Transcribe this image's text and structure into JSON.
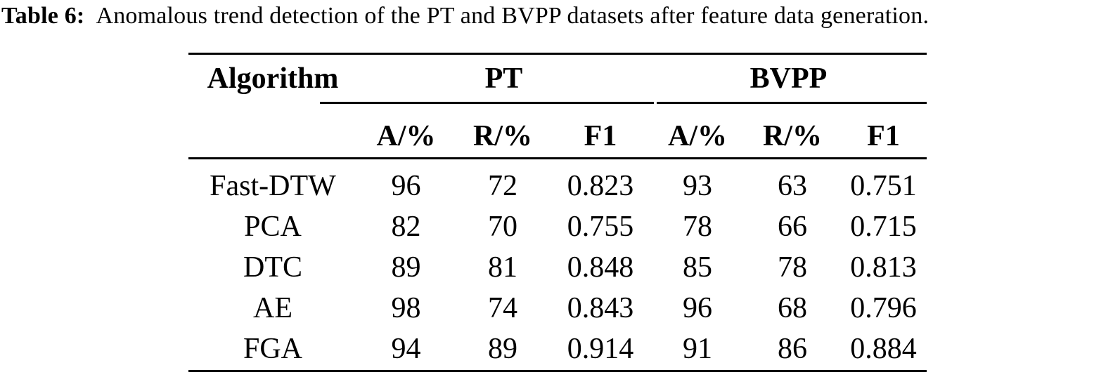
{
  "title": {
    "label": "Table 6:",
    "caption": "Anomalous trend detection of the PT and BVPP datasets after feature data generation."
  },
  "table": {
    "corner_header": "Algorithm",
    "groups": [
      {
        "label": "PT",
        "subheaders": [
          "A/%",
          "R/%",
          "F1"
        ]
      },
      {
        "label": "BVPP",
        "subheaders": [
          "A/%",
          "R/%",
          "F1"
        ]
      }
    ],
    "rows": [
      {
        "algorithm": "Fast-DTW",
        "values": [
          "96",
          "72",
          "0.823",
          "93",
          "63",
          "0.751"
        ]
      },
      {
        "algorithm": "PCA",
        "values": [
          "82",
          "70",
          "0.755",
          "78",
          "66",
          "0.715"
        ]
      },
      {
        "algorithm": "DTC",
        "values": [
          "89",
          "81",
          "0.848",
          "85",
          "78",
          "0.813"
        ]
      },
      {
        "algorithm": "AE",
        "values": [
          "98",
          "74",
          "0.843",
          "96",
          "68",
          "0.796"
        ]
      },
      {
        "algorithm": "FGA",
        "values": [
          "94",
          "89",
          "0.914",
          "91",
          "86",
          "0.884"
        ]
      }
    ]
  },
  "colors": {
    "text": "#000000",
    "background": "#ffffff",
    "rule": "#000000"
  }
}
